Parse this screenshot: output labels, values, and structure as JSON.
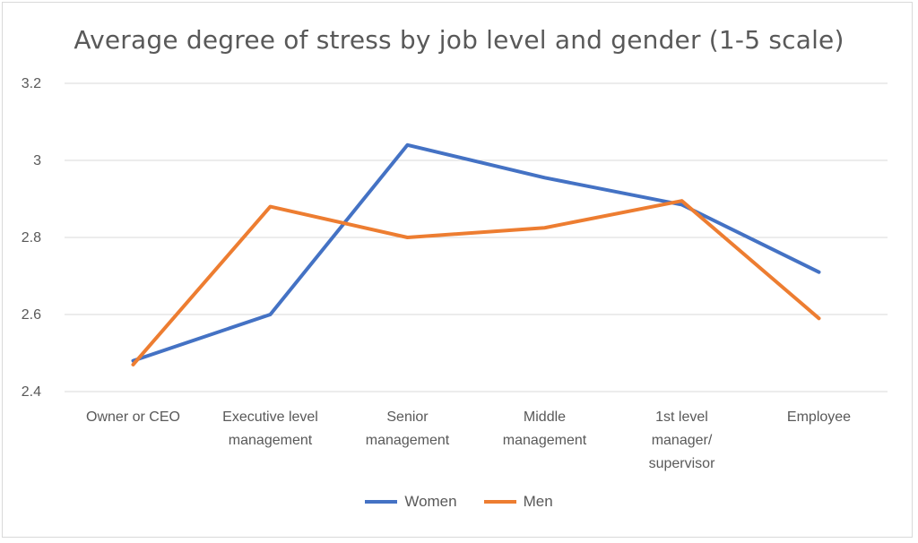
{
  "chart_data": {
    "type": "line",
    "title": "Average degree of stress by job level and gender (1-5 scale)",
    "categories": [
      [
        "Owner or CEO"
      ],
      [
        "Executive level",
        "management"
      ],
      [
        "Senior",
        "management"
      ],
      [
        "Middle",
        "management"
      ],
      [
        "1st level",
        "manager/",
        "supervisor"
      ],
      [
        "Employee"
      ]
    ],
    "series": [
      {
        "name": "Women",
        "color": "#4472C4",
        "values": [
          2.48,
          2.6,
          3.04,
          2.955,
          2.885,
          2.71
        ]
      },
      {
        "name": "Men",
        "color": "#ED7D31",
        "values": [
          2.47,
          2.88,
          2.8,
          2.825,
          2.895,
          2.59
        ]
      }
    ],
    "ylim": [
      2.4,
      3.2
    ],
    "yticks": [
      "2.4",
      "2.6",
      "2.8",
      "3",
      "3.2"
    ],
    "ytick_values": [
      2.4,
      2.6,
      2.8,
      3.0,
      3.2
    ],
    "xlabel": "",
    "ylabel": "",
    "grid": true,
    "legend_position": "bottom"
  }
}
